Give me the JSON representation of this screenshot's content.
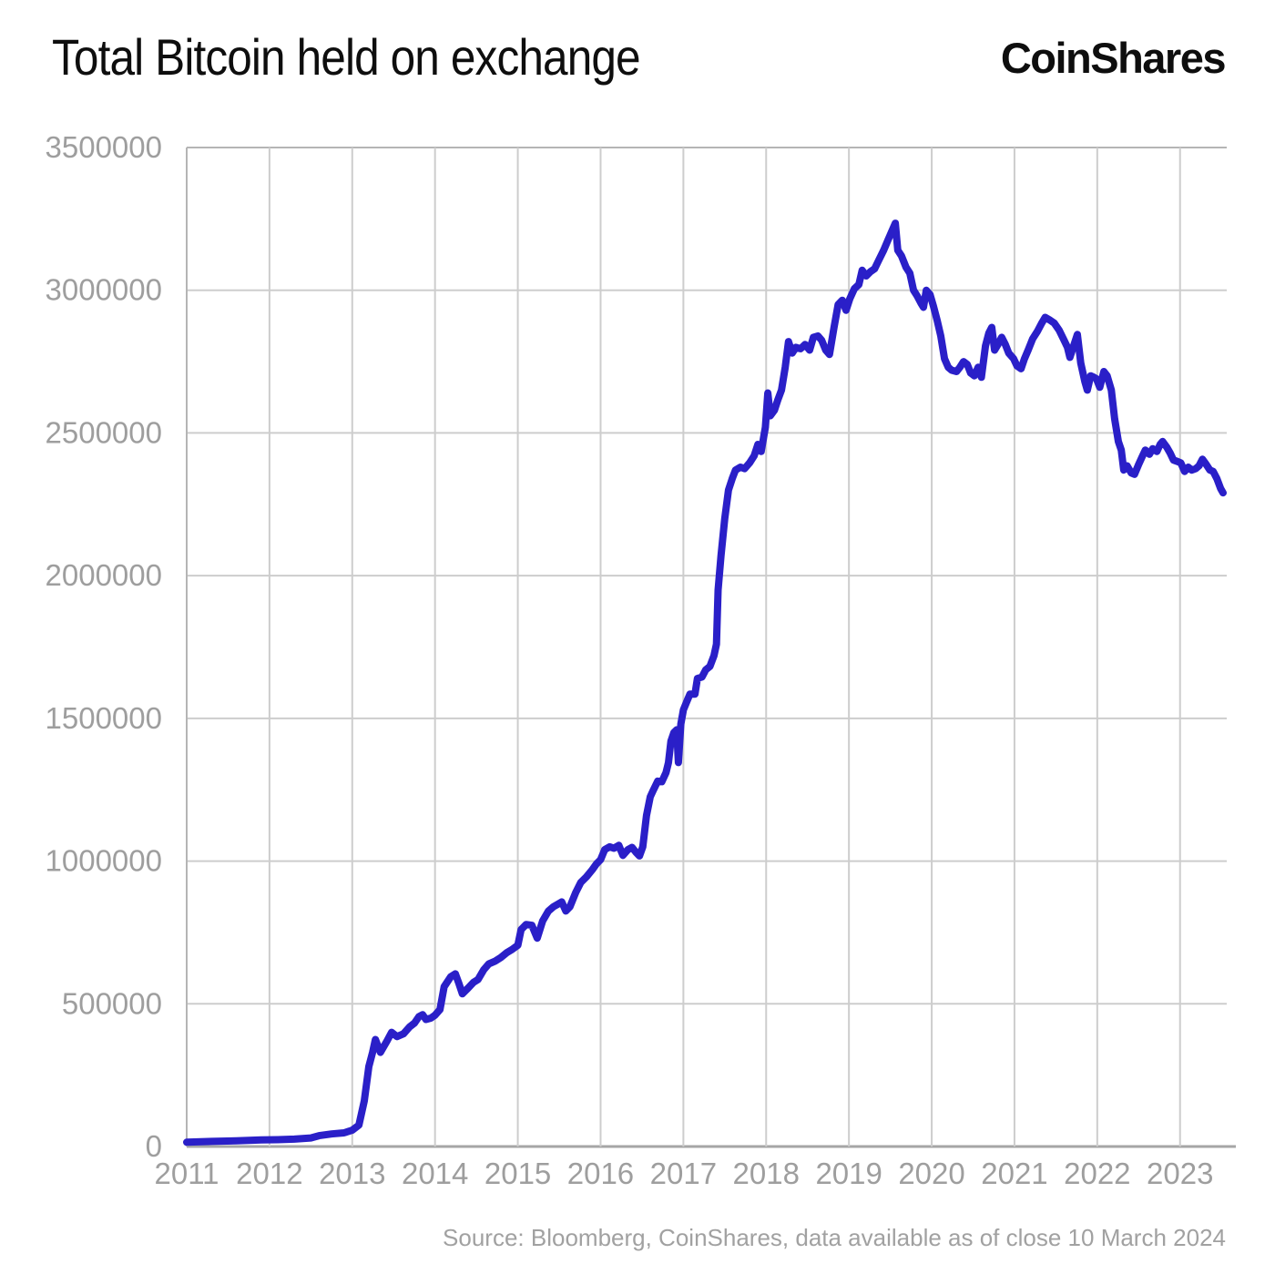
{
  "header": {
    "title": "Total Bitcoin held on exchange",
    "brand": "CoinShares"
  },
  "footer": {
    "source": "Source: Bloomberg, CoinShares, data available as of close 10 March 2024"
  },
  "chart_data": {
    "type": "line",
    "title": "Total Bitcoin held on exchange",
    "series_name": "Total Bitcoin held on exchange",
    "line_color": "#2a1fc8",
    "grid_color": "#cdcdcd",
    "frame_color": "#b5b5b5",
    "axis_line_color": "#a6a6a6",
    "axis_text_color": "#9e9e9e",
    "grid": true,
    "legend": "none",
    "x_range": [
      2011,
      2023.564
    ],
    "y_range": [
      0,
      3500000
    ],
    "x_ticks": [
      2011,
      2012,
      2013,
      2014,
      2015,
      2016,
      2017,
      2018,
      2019,
      2020,
      2021,
      2022,
      2023
    ],
    "y_ticks": [
      0,
      500000,
      1000000,
      1500000,
      2000000,
      2500000,
      3000000,
      3500000
    ],
    "y_tick_labels": [
      "0",
      "500000",
      "1000000",
      "1500000",
      "2000000",
      "2500000",
      "3000000",
      "3500000"
    ],
    "points": [
      [
        2011.0,
        15000
      ],
      [
        2011.3,
        18000
      ],
      [
        2011.6,
        20000
      ],
      [
        2011.9,
        23000
      ],
      [
        2012.1,
        24000
      ],
      [
        2012.3,
        26000
      ],
      [
        2012.5,
        30000
      ],
      [
        2012.6,
        38000
      ],
      [
        2012.75,
        44000
      ],
      [
        2012.9,
        48000
      ],
      [
        2013.0,
        57000
      ],
      [
        2013.08,
        75000
      ],
      [
        2013.145,
        160000
      ],
      [
        2013.2,
        280000
      ],
      [
        2013.245,
        330000
      ],
      [
        2013.28,
        375000
      ],
      [
        2013.34,
        330000
      ],
      [
        2013.42,
        370000
      ],
      [
        2013.475,
        400000
      ],
      [
        2013.54,
        385000
      ],
      [
        2013.62,
        395000
      ],
      [
        2013.695,
        420000
      ],
      [
        2013.75,
        432000
      ],
      [
        2013.805,
        455000
      ],
      [
        2013.85,
        462000
      ],
      [
        2013.89,
        445000
      ],
      [
        2013.95,
        450000
      ],
      [
        2014.0,
        460000
      ],
      [
        2014.06,
        480000
      ],
      [
        2014.11,
        560000
      ],
      [
        2014.19,
        595000
      ],
      [
        2014.245,
        605000
      ],
      [
        2014.29,
        570000
      ],
      [
        2014.33,
        535000
      ],
      [
        2014.4,
        555000
      ],
      [
        2014.465,
        575000
      ],
      [
        2014.52,
        585000
      ],
      [
        2014.59,
        620000
      ],
      [
        2014.65,
        640000
      ],
      [
        2014.73,
        650000
      ],
      [
        2014.795,
        662000
      ],
      [
        2014.87,
        680000
      ],
      [
        2014.93,
        690000
      ],
      [
        2015.0,
        705000
      ],
      [
        2015.04,
        760000
      ],
      [
        2015.1,
        778000
      ],
      [
        2015.17,
        775000
      ],
      [
        2015.235,
        730000
      ],
      [
        2015.3,
        790000
      ],
      [
        2015.37,
        825000
      ],
      [
        2015.43,
        840000
      ],
      [
        2015.49,
        850000
      ],
      [
        2015.53,
        857000
      ],
      [
        2015.58,
        825000
      ],
      [
        2015.63,
        840000
      ],
      [
        2015.7,
        890000
      ],
      [
        2015.76,
        925000
      ],
      [
        2015.83,
        945000
      ],
      [
        2015.9,
        970000
      ],
      [
        2015.95,
        990000
      ],
      [
        2016.0,
        1005000
      ],
      [
        2016.05,
        1040000
      ],
      [
        2016.11,
        1050000
      ],
      [
        2016.16,
        1045000
      ],
      [
        2016.22,
        1055000
      ],
      [
        2016.27,
        1020000
      ],
      [
        2016.33,
        1040000
      ],
      [
        2016.38,
        1048000
      ],
      [
        2016.43,
        1030000
      ],
      [
        2016.47,
        1018000
      ],
      [
        2016.51,
        1050000
      ],
      [
        2016.555,
        1160000
      ],
      [
        2016.6,
        1225000
      ],
      [
        2016.64,
        1250000
      ],
      [
        2016.69,
        1280000
      ],
      [
        2016.74,
        1278000
      ],
      [
        2016.79,
        1310000
      ],
      [
        2016.82,
        1345000
      ],
      [
        2016.85,
        1420000
      ],
      [
        2016.885,
        1450000
      ],
      [
        2016.92,
        1460000
      ],
      [
        2016.94,
        1345000
      ],
      [
        2016.97,
        1480000
      ],
      [
        2017.0,
        1530000
      ],
      [
        2017.04,
        1558000
      ],
      [
        2017.08,
        1585000
      ],
      [
        2017.14,
        1585000
      ],
      [
        2017.17,
        1640000
      ],
      [
        2017.225,
        1645000
      ],
      [
        2017.27,
        1670000
      ],
      [
        2017.32,
        1682000
      ],
      [
        2017.37,
        1720000
      ],
      [
        2017.4,
        1760000
      ],
      [
        2017.42,
        1950000
      ],
      [
        2017.455,
        2070000
      ],
      [
        2017.5,
        2200000
      ],
      [
        2017.545,
        2300000
      ],
      [
        2017.59,
        2340000
      ],
      [
        2017.63,
        2370000
      ],
      [
        2017.69,
        2380000
      ],
      [
        2017.74,
        2375000
      ],
      [
        2017.8,
        2395000
      ],
      [
        2017.855,
        2420000
      ],
      [
        2017.9,
        2460000
      ],
      [
        2017.94,
        2435000
      ],
      [
        2017.99,
        2520000
      ],
      [
        2018.02,
        2640000
      ],
      [
        2018.05,
        2560000
      ],
      [
        2018.1,
        2580000
      ],
      [
        2018.14,
        2615000
      ],
      [
        2018.185,
        2650000
      ],
      [
        2018.23,
        2730000
      ],
      [
        2018.27,
        2820000
      ],
      [
        2018.315,
        2780000
      ],
      [
        2018.36,
        2800000
      ],
      [
        2018.415,
        2795000
      ],
      [
        2018.47,
        2810000
      ],
      [
        2018.525,
        2790000
      ],
      [
        2018.57,
        2835000
      ],
      [
        2018.625,
        2840000
      ],
      [
        2018.67,
        2825000
      ],
      [
        2018.72,
        2790000
      ],
      [
        2018.765,
        2775000
      ],
      [
        2018.82,
        2870000
      ],
      [
        2018.87,
        2950000
      ],
      [
        2018.92,
        2965000
      ],
      [
        2018.965,
        2930000
      ],
      [
        2019.01,
        2970000
      ],
      [
        2019.065,
        3005000
      ],
      [
        2019.12,
        3020000
      ],
      [
        2019.16,
        3070000
      ],
      [
        2019.21,
        3050000
      ],
      [
        2019.26,
        3065000
      ],
      [
        2019.31,
        3075000
      ],
      [
        2019.36,
        3105000
      ],
      [
        2019.42,
        3140000
      ],
      [
        2019.47,
        3175000
      ],
      [
        2019.515,
        3205000
      ],
      [
        2019.56,
        3235000
      ],
      [
        2019.59,
        3140000
      ],
      [
        2019.635,
        3120000
      ],
      [
        2019.69,
        3080000
      ],
      [
        2019.735,
        3060000
      ],
      [
        2019.78,
        3000000
      ],
      [
        2019.825,
        2980000
      ],
      [
        2019.87,
        2955000
      ],
      [
        2019.9,
        2940000
      ],
      [
        2019.935,
        3000000
      ],
      [
        2019.98,
        2985000
      ],
      [
        2020.02,
        2945000
      ],
      [
        2020.065,
        2895000
      ],
      [
        2020.11,
        2840000
      ],
      [
        2020.155,
        2760000
      ],
      [
        2020.2,
        2730000
      ],
      [
        2020.24,
        2720000
      ],
      [
        2020.3,
        2715000
      ],
      [
        2020.34,
        2730000
      ],
      [
        2020.385,
        2750000
      ],
      [
        2020.43,
        2740000
      ],
      [
        2020.47,
        2710000
      ],
      [
        2020.515,
        2700000
      ],
      [
        2020.56,
        2730000
      ],
      [
        2020.6,
        2695000
      ],
      [
        2020.65,
        2805000
      ],
      [
        2020.69,
        2850000
      ],
      [
        2020.725,
        2870000
      ],
      [
        2020.76,
        2790000
      ],
      [
        2020.8,
        2810000
      ],
      [
        2020.845,
        2835000
      ],
      [
        2020.89,
        2810000
      ],
      [
        2020.93,
        2780000
      ],
      [
        2020.99,
        2760000
      ],
      [
        2021.03,
        2735000
      ],
      [
        2021.08,
        2725000
      ],
      [
        2021.12,
        2760000
      ],
      [
        2021.165,
        2790000
      ],
      [
        2021.22,
        2830000
      ],
      [
        2021.275,
        2855000
      ],
      [
        2021.33,
        2885000
      ],
      [
        2021.37,
        2905000
      ],
      [
        2021.43,
        2895000
      ],
      [
        2021.48,
        2885000
      ],
      [
        2021.54,
        2860000
      ],
      [
        2021.59,
        2830000
      ],
      [
        2021.64,
        2800000
      ],
      [
        2021.67,
        2765000
      ],
      [
        2021.72,
        2810000
      ],
      [
        2021.76,
        2845000
      ],
      [
        2021.8,
        2745000
      ],
      [
        2021.85,
        2680000
      ],
      [
        2021.88,
        2650000
      ],
      [
        2021.92,
        2700000
      ],
      [
        2021.96,
        2695000
      ],
      [
        2021.99,
        2690000
      ],
      [
        2022.03,
        2660000
      ],
      [
        2022.08,
        2715000
      ],
      [
        2022.12,
        2700000
      ],
      [
        2022.17,
        2650000
      ],
      [
        2022.21,
        2550000
      ],
      [
        2022.255,
        2470000
      ],
      [
        2022.29,
        2440000
      ],
      [
        2022.32,
        2370000
      ],
      [
        2022.36,
        2385000
      ],
      [
        2022.41,
        2360000
      ],
      [
        2022.45,
        2355000
      ],
      [
        2022.5,
        2390000
      ],
      [
        2022.54,
        2415000
      ],
      [
        2022.58,
        2440000
      ],
      [
        2022.63,
        2425000
      ],
      [
        2022.67,
        2445000
      ],
      [
        2022.72,
        2435000
      ],
      [
        2022.76,
        2460000
      ],
      [
        2022.79,
        2470000
      ],
      [
        2022.84,
        2450000
      ],
      [
        2022.88,
        2430000
      ],
      [
        2022.92,
        2405000
      ],
      [
        2022.97,
        2400000
      ],
      [
        2023.01,
        2395000
      ],
      [
        2023.055,
        2365000
      ],
      [
        2023.1,
        2380000
      ],
      [
        2023.14,
        2370000
      ],
      [
        2023.19,
        2375000
      ],
      [
        2023.23,
        2385000
      ],
      [
        2023.27,
        2408000
      ],
      [
        2023.315,
        2390000
      ],
      [
        2023.36,
        2370000
      ],
      [
        2023.4,
        2365000
      ],
      [
        2023.445,
        2340000
      ],
      [
        2023.49,
        2305000
      ],
      [
        2023.52,
        2290000
      ]
    ]
  }
}
